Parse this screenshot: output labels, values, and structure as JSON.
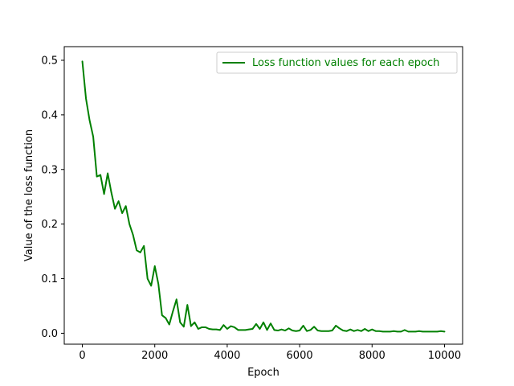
{
  "chart_data": {
    "type": "line",
    "title": "",
    "xlabel": "Epoch",
    "ylabel": "Value of the loss function",
    "xlim": [
      -500,
      10500
    ],
    "ylim": [
      -0.02,
      0.525
    ],
    "xticks": [
      0,
      2000,
      4000,
      6000,
      8000,
      10000
    ],
    "yticks": [
      0.0,
      0.1,
      0.2,
      0.3,
      0.4,
      0.5
    ],
    "xtick_labels": [
      "0",
      "2000",
      "4000",
      "6000",
      "8000",
      "10000"
    ],
    "ytick_labels": [
      "0.0",
      "0.1",
      "0.2",
      "0.3",
      "0.4",
      "0.5"
    ],
    "grid": false,
    "legend_position": "upper right",
    "series": [
      {
        "name": "Loss function values for each epoch",
        "color": "#008000",
        "x": [
          0,
          100,
          200,
          300,
          400,
          500,
          600,
          700,
          800,
          900,
          1000,
          1100,
          1200,
          1300,
          1400,
          1500,
          1600,
          1700,
          1800,
          1900,
          2000,
          2100,
          2200,
          2300,
          2400,
          2500,
          2600,
          2700,
          2800,
          2900,
          3000,
          3100,
          3200,
          3300,
          3400,
          3500,
          3600,
          3700,
          3800,
          3900,
          4000,
          4100,
          4200,
          4300,
          4400,
          4500,
          4600,
          4700,
          4800,
          4900,
          5000,
          5100,
          5200,
          5300,
          5400,
          5500,
          5600,
          5700,
          5800,
          5900,
          6000,
          6100,
          6200,
          6300,
          6400,
          6500,
          6600,
          6700,
          6800,
          6900,
          7000,
          7100,
          7200,
          7300,
          7400,
          7500,
          7600,
          7700,
          7800,
          7900,
          8000,
          8100,
          8200,
          8300,
          8400,
          8500,
          8600,
          8700,
          8800,
          8900,
          9000,
          9100,
          9200,
          9300,
          9400,
          9500,
          9600,
          9700,
          9800,
          9900,
          10000
        ],
        "y": [
          0.498,
          0.43,
          0.39,
          0.36,
          0.287,
          0.29,
          0.255,
          0.293,
          0.258,
          0.228,
          0.242,
          0.22,
          0.233,
          0.2,
          0.18,
          0.152,
          0.148,
          0.16,
          0.1,
          0.087,
          0.123,
          0.09,
          0.033,
          0.028,
          0.016,
          0.04,
          0.062,
          0.02,
          0.012,
          0.052,
          0.013,
          0.02,
          0.008,
          0.011,
          0.011,
          0.008,
          0.007,
          0.007,
          0.006,
          0.015,
          0.008,
          0.013,
          0.011,
          0.006,
          0.006,
          0.006,
          0.007,
          0.008,
          0.017,
          0.008,
          0.02,
          0.006,
          0.018,
          0.006,
          0.005,
          0.007,
          0.005,
          0.009,
          0.005,
          0.004,
          0.005,
          0.014,
          0.004,
          0.006,
          0.012,
          0.005,
          0.004,
          0.004,
          0.004,
          0.005,
          0.014,
          0.009,
          0.005,
          0.004,
          0.007,
          0.004,
          0.006,
          0.004,
          0.008,
          0.004,
          0.007,
          0.004,
          0.004,
          0.003,
          0.003,
          0.003,
          0.004,
          0.003,
          0.003,
          0.006,
          0.003,
          0.003,
          0.003,
          0.004,
          0.003,
          0.003,
          0.003,
          0.003,
          0.003,
          0.004,
          0.003
        ]
      }
    ]
  }
}
